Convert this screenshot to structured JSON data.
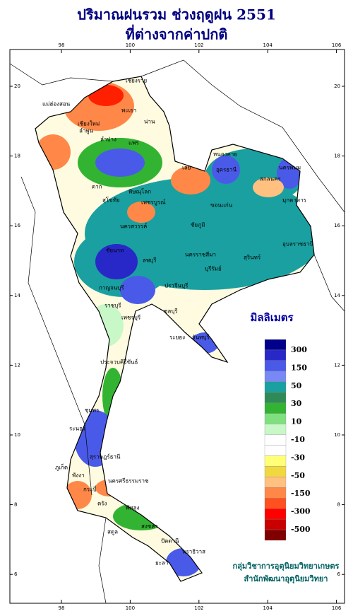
{
  "title": "ปริมาณฝนรวม ช่วงฤดูฝน 2551",
  "subtitle": "ที่ต่างจากค่าปกติ",
  "map": {
    "lon_ticks": [
      98,
      100,
      102,
      104,
      106
    ],
    "lat_ticks": [
      20,
      18,
      16,
      14,
      12,
      10,
      8,
      6
    ]
  },
  "provinces": [
    "เชียงราย",
    "พะเยา",
    "น่าน",
    "แม่ฮ่องสอน",
    "เชียงใหม่",
    "ลำพูน",
    "ลำปาง",
    "แพร่",
    "หนองคาย",
    "อุดรธานี",
    "นครพนม",
    "เลย",
    "สกลนคร",
    "ตาก",
    "สุโขทัย",
    "พิษณุโลก",
    "มุกดาหาร",
    "ขอนแก่น",
    "เพชรบูรณ์",
    "นครสวรรค์",
    "ชัยภูมิ",
    "อุบลราชธานี",
    "นครราชสีมา",
    "ลพบุรี",
    "สุรินทร์",
    "ชัยนาท",
    "กาญจนบุรี",
    "บุรีรัมย์",
    "ปราจีนบุรี",
    "ราชบุรี",
    "ชลบุรี",
    "ระยอง",
    "จันทบุรี",
    "เพชรบุรี",
    "ประจวบคีรีขันธ์",
    "ชุมพร",
    "ระนอง",
    "สุราษฎร์ธานี",
    "พังงา",
    "ภูเก็ต",
    "กระบี่",
    "นครศรีธรรมราช",
    "ตรัง",
    "พัทลุง",
    "สงขลา",
    "สตูล",
    "ปัตตานี",
    "ยะลา",
    "นราธิวาส"
  ],
  "legend": {
    "title": "มิลลิเมตร",
    "labels": [
      300,
      150,
      50,
      30,
      10,
      -10,
      -30,
      -50,
      -150,
      -300,
      -500
    ],
    "colors": [
      "#00008b",
      "#2828c8",
      "#4a5ae8",
      "#7888f4",
      "#1aa0a0",
      "#2e8b57",
      "#32b432",
      "#80e080",
      "#c8f8c8",
      "#ffffff",
      "#ffffff",
      "#ffff78",
      "#f0d840",
      "#ffc080",
      "#ff8848",
      "#ff5020",
      "#ff0000",
      "#c80000",
      "#800000"
    ]
  },
  "credits": [
    "กลุ่มวิชาการอุตุนิยมวิทยาเกษตร",
    "สำนักพัฒนาอุตุนิยมวิทยา"
  ]
}
